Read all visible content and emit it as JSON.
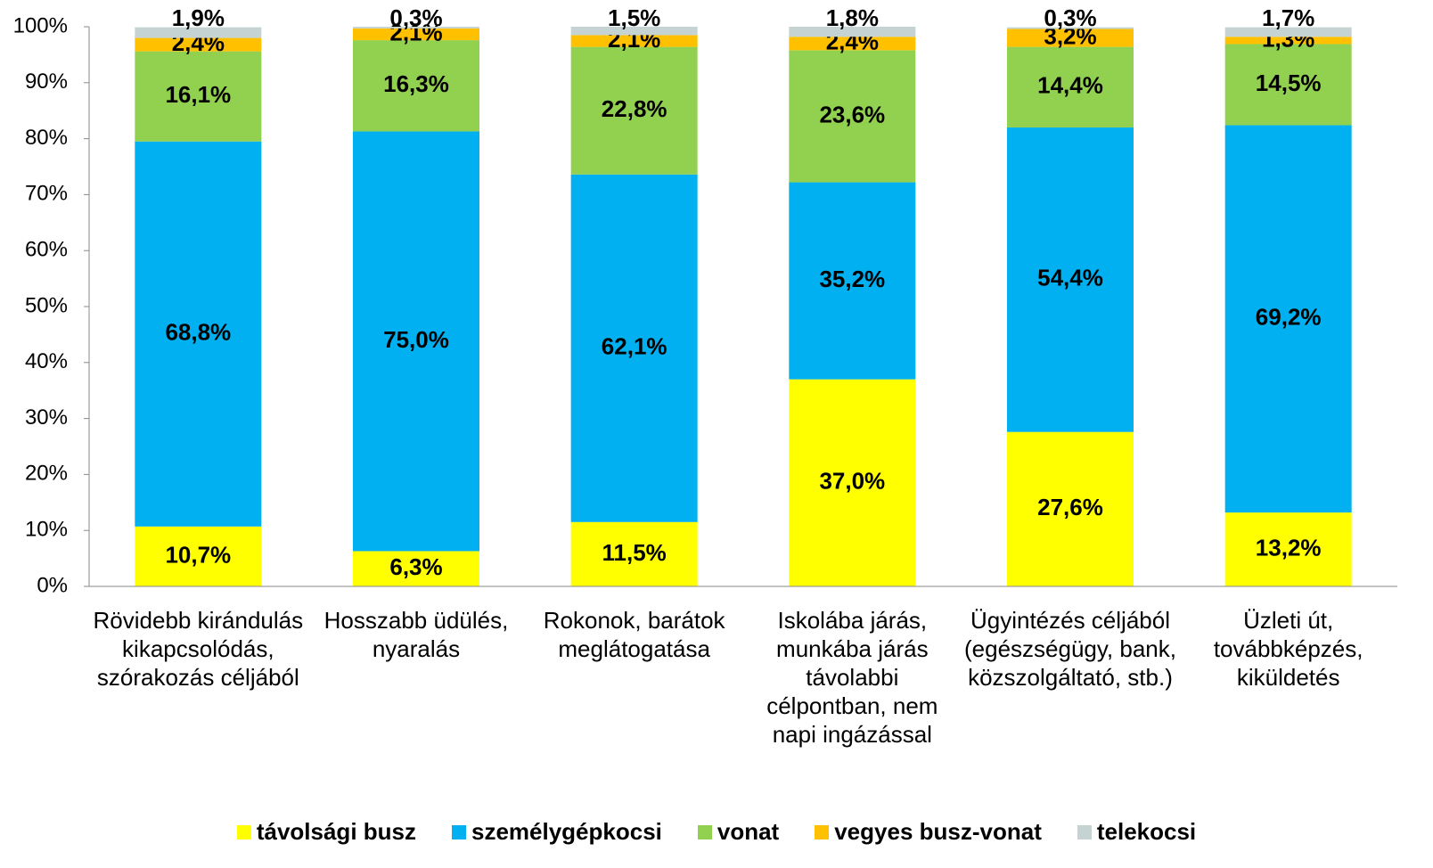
{
  "chart_data": {
    "type": "bar",
    "stacked": true,
    "categories": [
      "Rövidebb kirándulás kikapcsolódás, szórakozás céljából",
      "Hosszabb üdülés, nyaralás",
      "Rokonok, barátok meglátogatása",
      "Iskolába járás, munkába járás távolabbi célpontban, nem napi ingázással",
      "Ügyintézés céljából (egészségügy, bank, közszolgáltató, stb.)",
      "Üzleti út, továbbképzés, kiküldetés"
    ],
    "series": [
      {
        "name": "távolsági busz",
        "color": "#ffff00",
        "values": [
          10.7,
          6.3,
          11.5,
          37.0,
          27.6,
          13.2
        ],
        "value_labels": [
          "10,7%",
          "6,3%",
          "11,5%",
          "37,0%",
          "27,6%",
          "13,2%"
        ]
      },
      {
        "name": "személygépkocsi",
        "color": "#00b0f0",
        "values": [
          68.8,
          75.0,
          62.1,
          35.2,
          54.4,
          69.2
        ],
        "value_labels": [
          "68,8%",
          "75,0%",
          "62,1%",
          "35,2%",
          "54,4%",
          "69,2%"
        ]
      },
      {
        "name": "vonat",
        "color": "#92d050",
        "values": [
          16.1,
          16.3,
          22.8,
          23.6,
          14.4,
          14.5
        ],
        "value_labels": [
          "16,1%",
          "16,3%",
          "22,8%",
          "23,6%",
          "14,4%",
          "14,5%"
        ]
      },
      {
        "name": "vegyes busz-vonat",
        "color": "#ffc000",
        "values": [
          2.4,
          2.1,
          2.1,
          2.4,
          3.2,
          1.3
        ],
        "value_labels": [
          "2,4%",
          "2,1%",
          "2,1%",
          "2,4%",
          "3,2%",
          "1,3%"
        ]
      },
      {
        "name": "telekocsi",
        "color": "#c5d3d3",
        "values": [
          1.9,
          0.3,
          1.5,
          1.8,
          0.3,
          1.7
        ],
        "value_labels": [
          "1,9%",
          "0,3%",
          "1,5%",
          "1,8%",
          "0,3%",
          "1,7%"
        ]
      }
    ],
    "ylim": [
      0,
      100
    ],
    "yticks": [
      {
        "value": 0,
        "label": "0%"
      },
      {
        "value": 10,
        "label": "10%"
      },
      {
        "value": 20,
        "label": "20%"
      },
      {
        "value": 30,
        "label": "30%"
      },
      {
        "value": 40,
        "label": "40%"
      },
      {
        "value": 50,
        "label": "50%"
      },
      {
        "value": 60,
        "label": "60%"
      },
      {
        "value": 70,
        "label": "70%"
      },
      {
        "value": 80,
        "label": "80%"
      },
      {
        "value": 90,
        "label": "90%"
      },
      {
        "value": 100,
        "label": "100%"
      }
    ],
    "legend": "bottom"
  }
}
